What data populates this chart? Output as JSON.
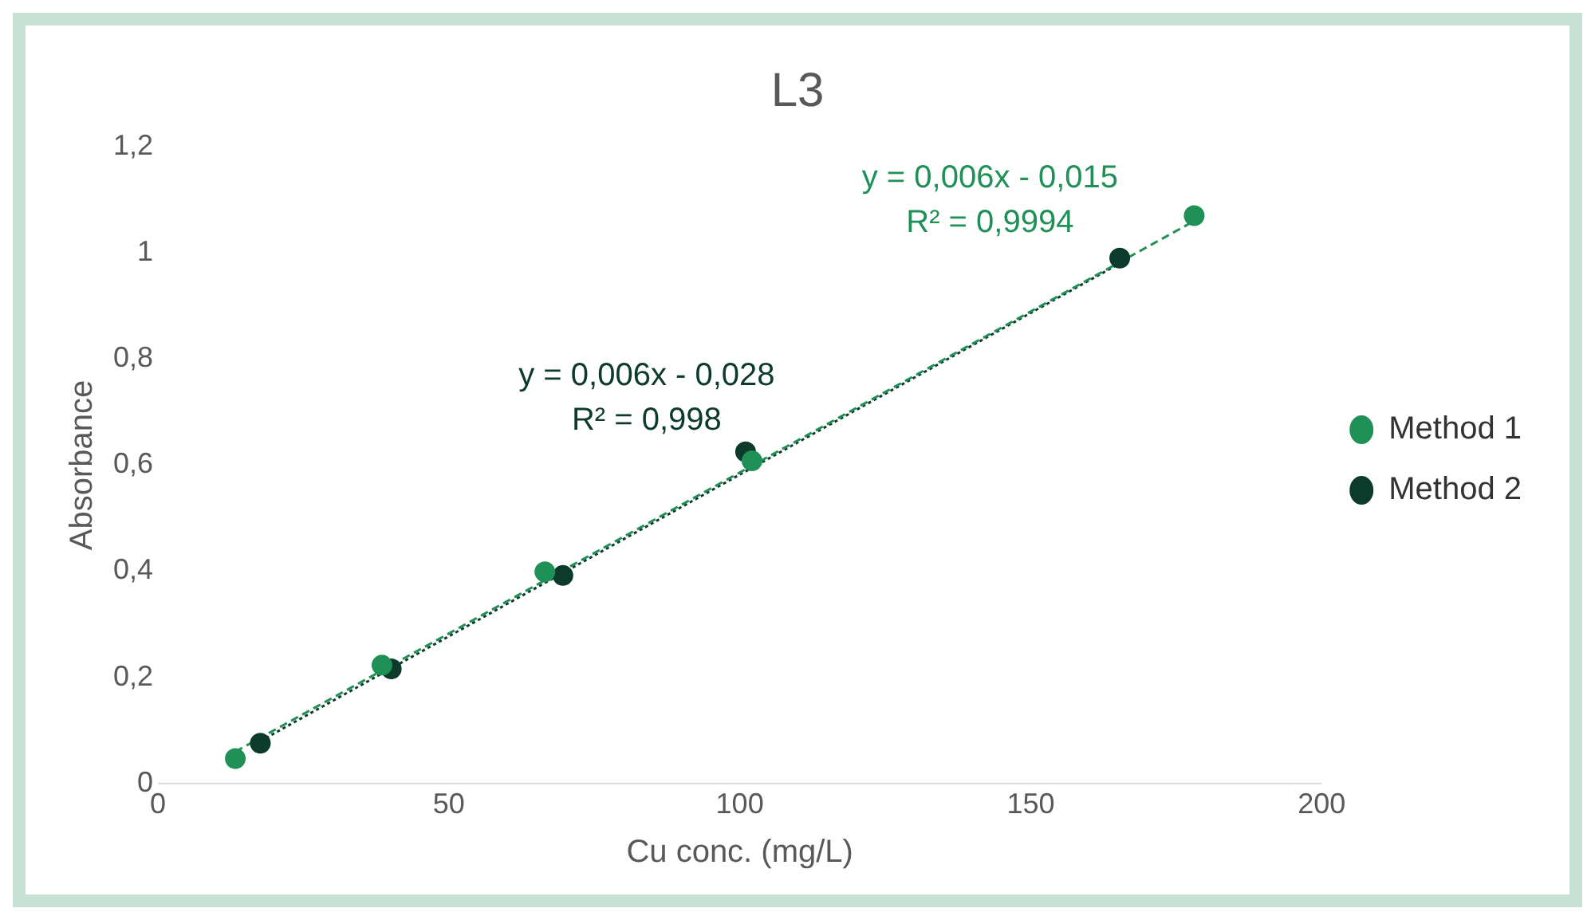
{
  "chart_data": {
    "type": "scatter",
    "title": "L3",
    "xlabel": "Cu conc. (mg/L)",
    "ylabel": "Absorbance",
    "xlim": [
      0,
      200
    ],
    "xticks": [
      0,
      50,
      100,
      150,
      200
    ],
    "ylim": [
      0,
      1.2
    ],
    "yticks": [
      0,
      {
        "value": 0.2,
        "label": "0,2"
      },
      {
        "value": 0.4,
        "label": "0,4"
      },
      {
        "value": 0.6,
        "label": "0,6"
      },
      {
        "value": 0.8,
        "label": "0,8"
      },
      1,
      {
        "value": 1.2,
        "label": "1,2"
      }
    ],
    "grid": false,
    "legend": "right",
    "marker": "circle",
    "series": [
      {
        "name": "Method 1",
        "color": "#1f9156",
        "x": [
          13.3,
          38.5,
          66.5,
          102.1,
          178.1
        ],
        "values": [
          0.047,
          0.223,
          0.399,
          0.608,
          1.07
        ]
      },
      {
        "name": "Method 2",
        "color": "#0c3b2c",
        "x": [
          17.6,
          40.1,
          69.6,
          101,
          165.3
        ],
        "values": [
          0.076,
          0.216,
          0.392,
          0.625,
          0.99
        ]
      },
      {
        "type": "line",
        "color": "#1f9156",
        "line_style": "dashed",
        "marker": "none",
        "x": [
          13.3,
          178.1
        ],
        "values": [
          0.06,
          1.06
        ]
      },
      {
        "type": "line",
        "color": "#0c3b2c",
        "line_style": "dotted",
        "marker": "none",
        "x": [
          17.6,
          165.3
        ],
        "values": [
          0.08,
          0.98
        ]
      }
    ],
    "annotations": [
      "y = 0,006x - 0,015",
      "R² = 0,9994",
      "y = 0,006x - 0,028",
      "R² = 0,998"
    ]
  }
}
